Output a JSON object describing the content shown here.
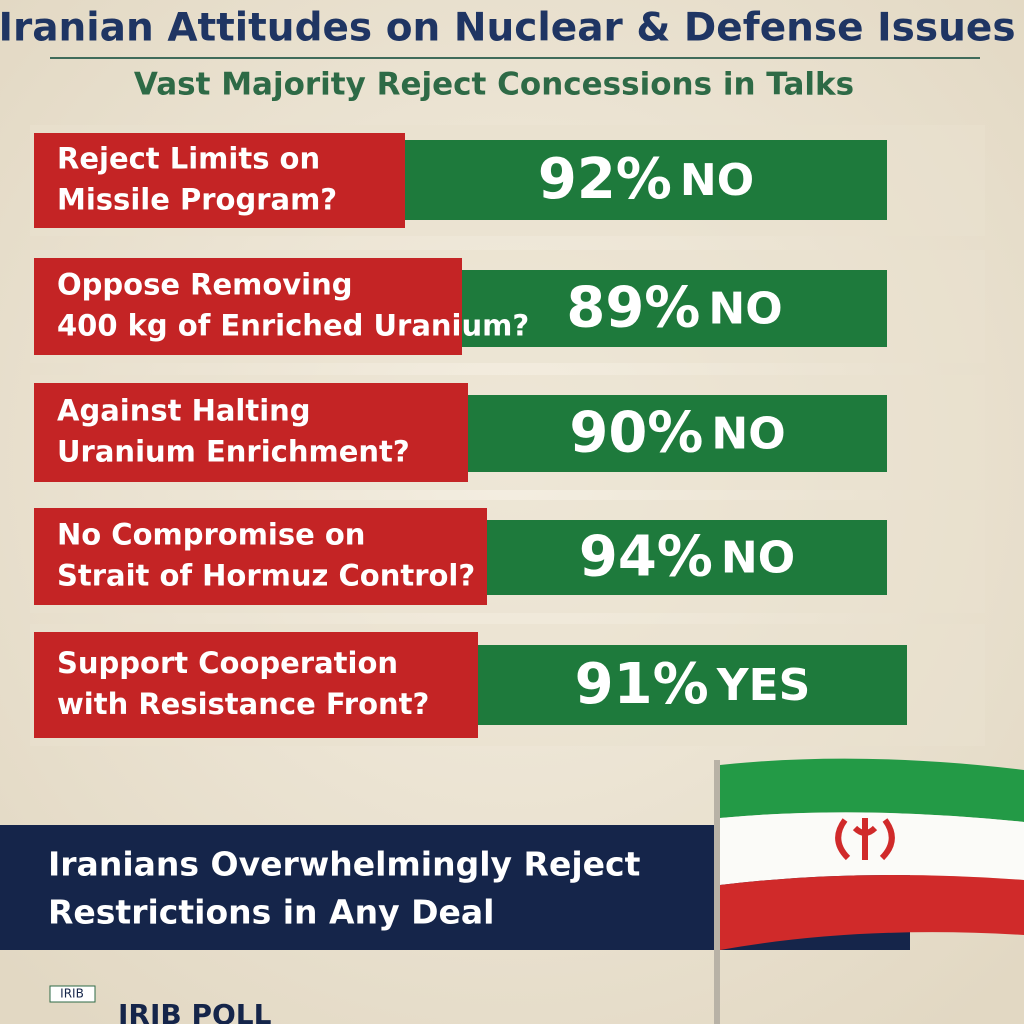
{
  "header": {
    "title": "Iranian Attitudes on Nuclear & Defense Issues",
    "subtitle": "Vast Majority Reject Concessions in Talks"
  },
  "items": [
    {
      "question": [
        "Reject Limits on",
        "Missile Program?"
      ],
      "percent": "92%",
      "answer": "NO"
    },
    {
      "question": [
        "Oppose Removing",
        "400 kg of Enriched Uranium?"
      ],
      "percent": "89%",
      "answer": "NO"
    },
    {
      "question": [
        "Against Halting",
        "Uranium Enrichment?"
      ],
      "percent": "90%",
      "answer": "NO"
    },
    {
      "question": [
        "No Compromise on",
        "Strait of Hormuz Control?"
      ],
      "percent": "94%",
      "answer": "NO"
    },
    {
      "question": [
        "Support Cooperation",
        "with Resistance Front?"
      ],
      "percent": "91%",
      "answer": "YES"
    }
  ],
  "banner": [
    "Iranians Overwhelmingly Reject",
    "Restrictions in Any Deal"
  ],
  "footer": {
    "logo": "IRIB",
    "source": "IRIB POLL"
  }
}
